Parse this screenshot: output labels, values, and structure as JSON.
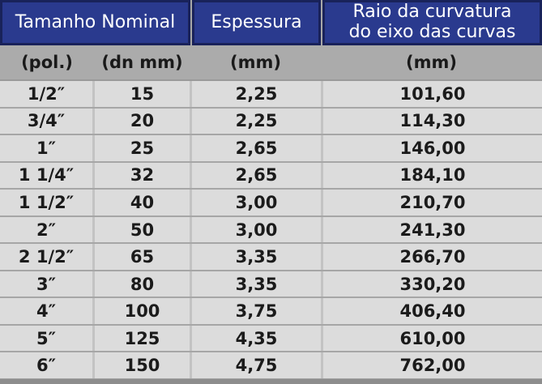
{
  "chart_data": {
    "type": "table",
    "header": {
      "tamanho_nominal": "Tamanho Nominal",
      "espessura": "Espessura",
      "raio_line1": "Raio da curvatura",
      "raio_line2": "do eixo das curvas"
    },
    "units": [
      "(pol.)",
      "(dn mm)",
      "(mm)",
      "(mm)"
    ],
    "rows": [
      [
        "1/2″",
        "15",
        "2,25",
        "101,60"
      ],
      [
        "3/4″",
        "20",
        "2,25",
        "114,30"
      ],
      [
        "1″",
        "25",
        "2,65",
        "146,00"
      ],
      [
        "1 1/4″",
        "32",
        "2,65",
        "184,10"
      ],
      [
        "1 1/2″",
        "40",
        "3,00",
        "210,70"
      ],
      [
        "2″",
        "50",
        "3,00",
        "241,30"
      ],
      [
        "2 1/2″",
        "65",
        "3,35",
        "266,70"
      ],
      [
        "3″",
        "80",
        "3,35",
        "330,20"
      ],
      [
        "4″",
        "100",
        "3,75",
        "406,40"
      ],
      [
        "5″",
        "125",
        "4,35",
        "610,00"
      ],
      [
        "6″",
        "150",
        "4,75",
        "762,00"
      ]
    ],
    "layout": {
      "header_groups": [
        {
          "label": "Tamanho Nominal",
          "span": 2
        },
        {
          "label": "Espessura",
          "span": 1
        },
        {
          "label": "Raio da curvatura do eixo das curvas",
          "span": 1
        }
      ],
      "grid": "on",
      "legend": "none"
    }
  },
  "colors": {
    "header_bg": "#2a3a8e",
    "header_border": "#19225a",
    "header_text": "#ffffff",
    "units_bg": "#ababab",
    "cell_bg": "#dcdcdc",
    "row_divider": "#a6a6a6",
    "col_divider": "#c3c3c3",
    "body_text": "#1b1b1b",
    "bottom_strip": "#8d8d8d"
  }
}
